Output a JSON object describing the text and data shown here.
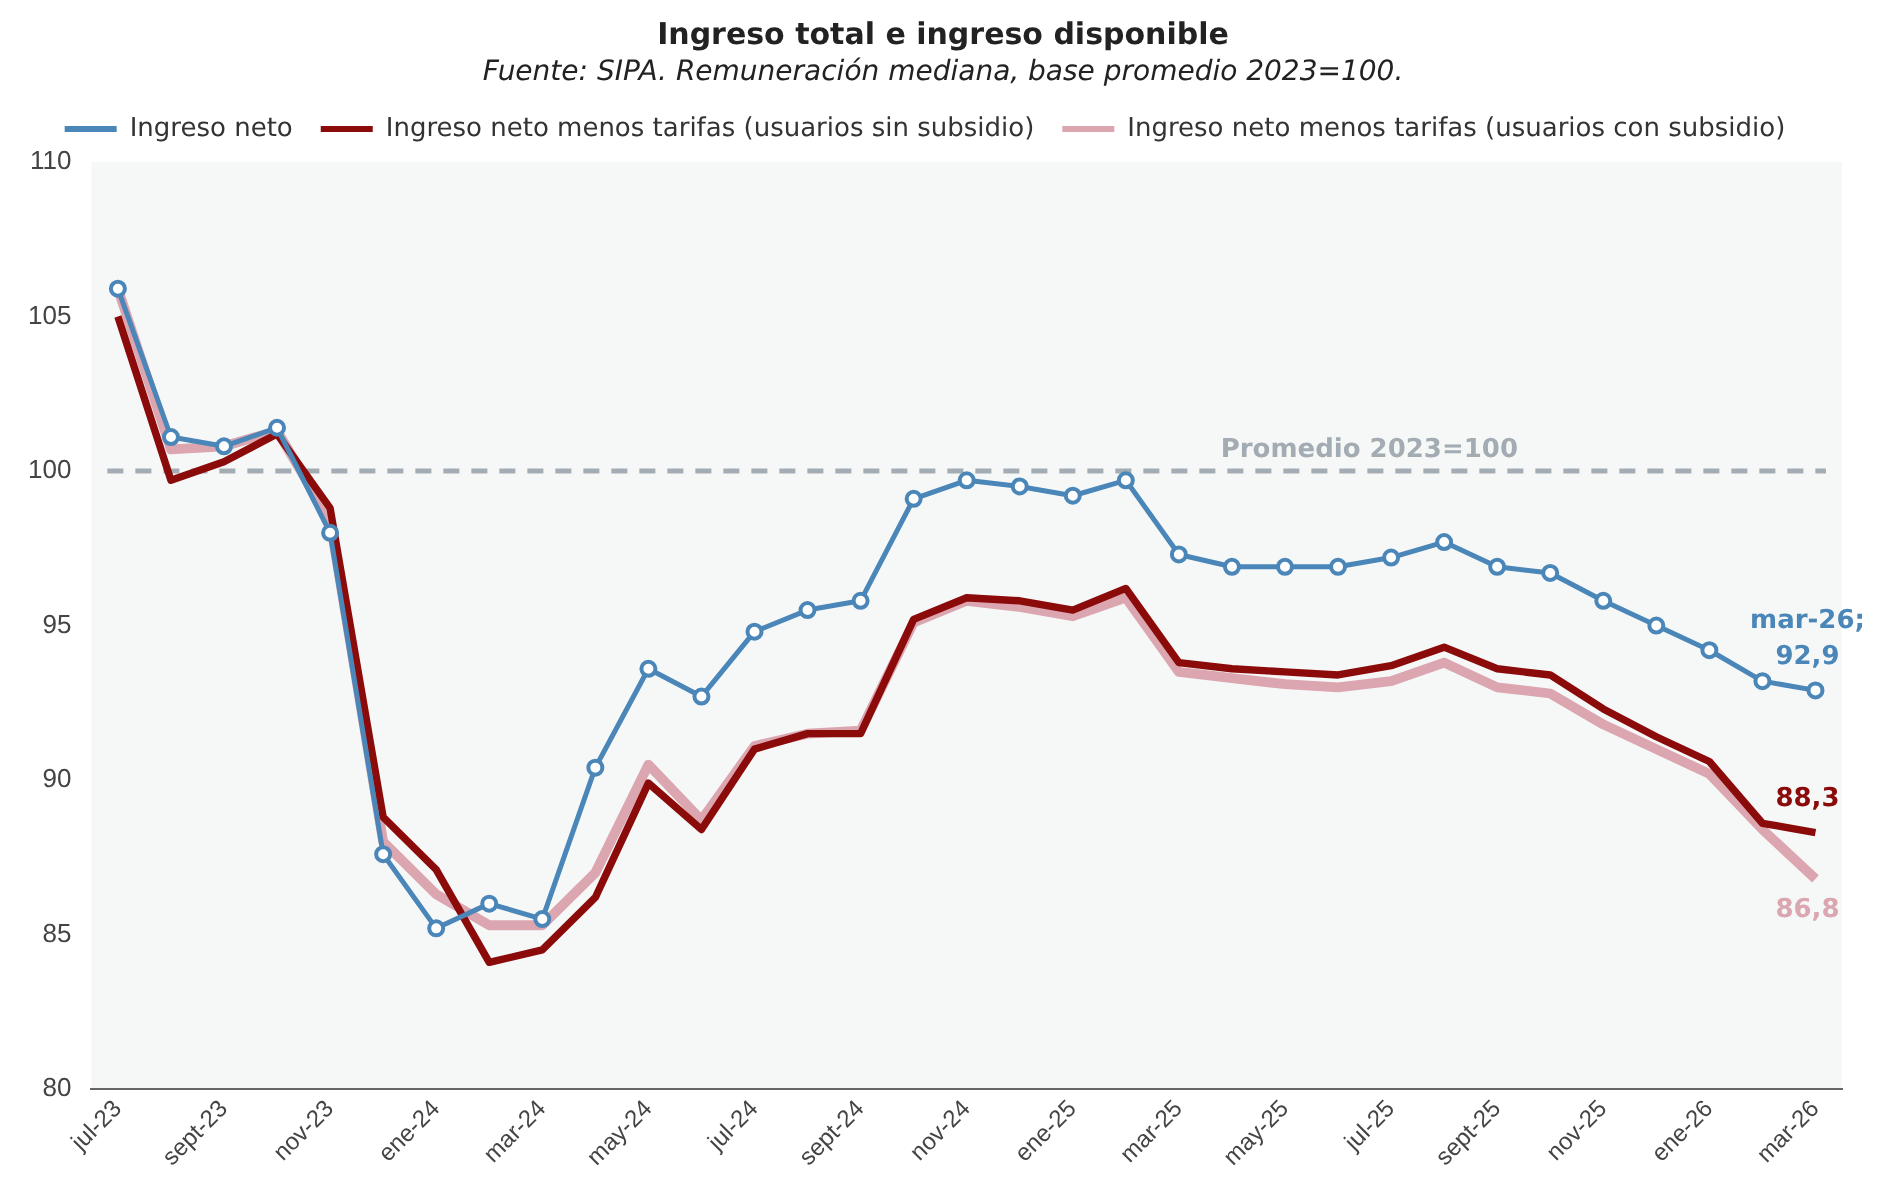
{
  "chart_data": {
    "type": "line",
    "title": "Ingreso total e ingreso disponible",
    "subtitle": "Fuente: SIPA. Remuneración mediana, base promedio 2023=100.",
    "categories": [
      "jul-23",
      null,
      "sept-23",
      null,
      "nov-23",
      null,
      "ene-24",
      null,
      "mar-24",
      null,
      "may-24",
      null,
      "jul-24",
      null,
      "sept-24",
      null,
      "nov-24",
      null,
      "ene-25",
      null,
      "mar-25",
      null,
      "may-25",
      null,
      "jul-25",
      null,
      "sept-25",
      null,
      "nov-25",
      null,
      "ene-26",
      null,
      "mar-26"
    ],
    "series": [
      {
        "name": "Ingreso neto",
        "color": "#4a86b8",
        "marker": "circle",
        "values": [
          105.9,
          101.1,
          100.8,
          101.4,
          98.0,
          87.6,
          85.2,
          86.0,
          85.5,
          90.4,
          93.6,
          92.7,
          94.8,
          95.5,
          95.8,
          99.1,
          99.7,
          99.5,
          99.2,
          99.7,
          97.3,
          96.9,
          96.9,
          96.9,
          97.2,
          97.7,
          96.9,
          96.7,
          95.8,
          95.0,
          94.2,
          93.2,
          92.9
        ],
        "value_labels": [
          null,
          null,
          null,
          null,
          null,
          null,
          null,
          null,
          null,
          null,
          null,
          null,
          null,
          null,
          null,
          null,
          null,
          null,
          null,
          null,
          null,
          null,
          null,
          null,
          null,
          null,
          null,
          null,
          null,
          null,
          null,
          null,
          "mar-26; 92,9"
        ]
      },
      {
        "name": "Ingreso neto menos tarifas (usuarios sin subsidio)",
        "color": "#8b0a0a",
        "marker": "none",
        "values": [
          105.0,
          99.7,
          100.3,
          101.2,
          98.8,
          88.8,
          87.1,
          84.1,
          84.5,
          86.2,
          89.9,
          88.4,
          91.0,
          91.5,
          91.5,
          95.2,
          95.9,
          95.8,
          95.5,
          96.2,
          93.8,
          93.6,
          93.5,
          93.4,
          93.7,
          94.3,
          93.6,
          93.4,
          92.3,
          91.4,
          90.6,
          88.6,
          88.3
        ],
        "value_labels": [
          null,
          null,
          null,
          null,
          null,
          null,
          null,
          null,
          null,
          null,
          null,
          null,
          null,
          null,
          null,
          null,
          null,
          null,
          null,
          null,
          null,
          null,
          null,
          null,
          null,
          null,
          null,
          null,
          null,
          null,
          null,
          null,
          "88,3"
        ]
      },
      {
        "name": "Ingreso neto menos tarifas (usuarios con subsidio)",
        "color": "#dba6b0",
        "marker": "none",
        "values": [
          105.9,
          100.7,
          100.8,
          101.3,
          98.4,
          88.0,
          86.3,
          85.3,
          85.3,
          87.0,
          90.5,
          88.7,
          91.1,
          91.5,
          91.6,
          95.1,
          95.8,
          95.6,
          95.3,
          95.9,
          93.5,
          93.3,
          93.1,
          93.0,
          93.2,
          93.8,
          93.0,
          92.8,
          91.8,
          91.0,
          90.2,
          88.4,
          86.8
        ],
        "value_labels": [
          null,
          null,
          null,
          null,
          null,
          null,
          null,
          null,
          null,
          null,
          null,
          null,
          null,
          null,
          null,
          null,
          null,
          null,
          null,
          null,
          null,
          null,
          null,
          null,
          null,
          null,
          null,
          null,
          null,
          null,
          null,
          null,
          "86,8"
        ]
      }
    ],
    "ylim": [
      80,
      110
    ],
    "yticks": [
      80,
      85,
      90,
      95,
      100,
      105,
      110
    ],
    "grid": false,
    "legend": "top",
    "line_style": "solid",
    "ref_lines": [
      {
        "axis": "y",
        "value": 100,
        "label": "Promedio 2023=100",
        "color": "#a3abb3",
        "line_style": "dashed"
      }
    ]
  }
}
